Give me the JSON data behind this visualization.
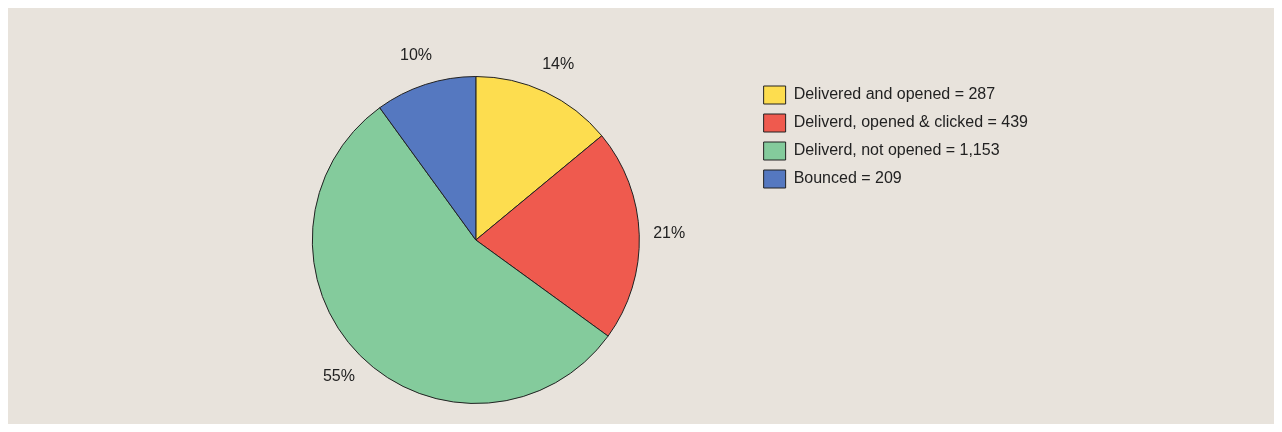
{
  "chart_data": {
    "type": "pie",
    "categories": [
      "Delivered and opened = 287",
      "Deliverd, opened & clicked = 439",
      "Deliverd, not opened = 1,153",
      "Bounced = 209"
    ],
    "values": [
      14,
      21,
      55,
      10
    ],
    "colors": [
      "#fddd4f",
      "#ef5a4e",
      "#84cb9c",
      "#5578c0"
    ],
    "value_labels": [
      "14%",
      "21%",
      "55%",
      "10%"
    ],
    "legend": "right"
  }
}
